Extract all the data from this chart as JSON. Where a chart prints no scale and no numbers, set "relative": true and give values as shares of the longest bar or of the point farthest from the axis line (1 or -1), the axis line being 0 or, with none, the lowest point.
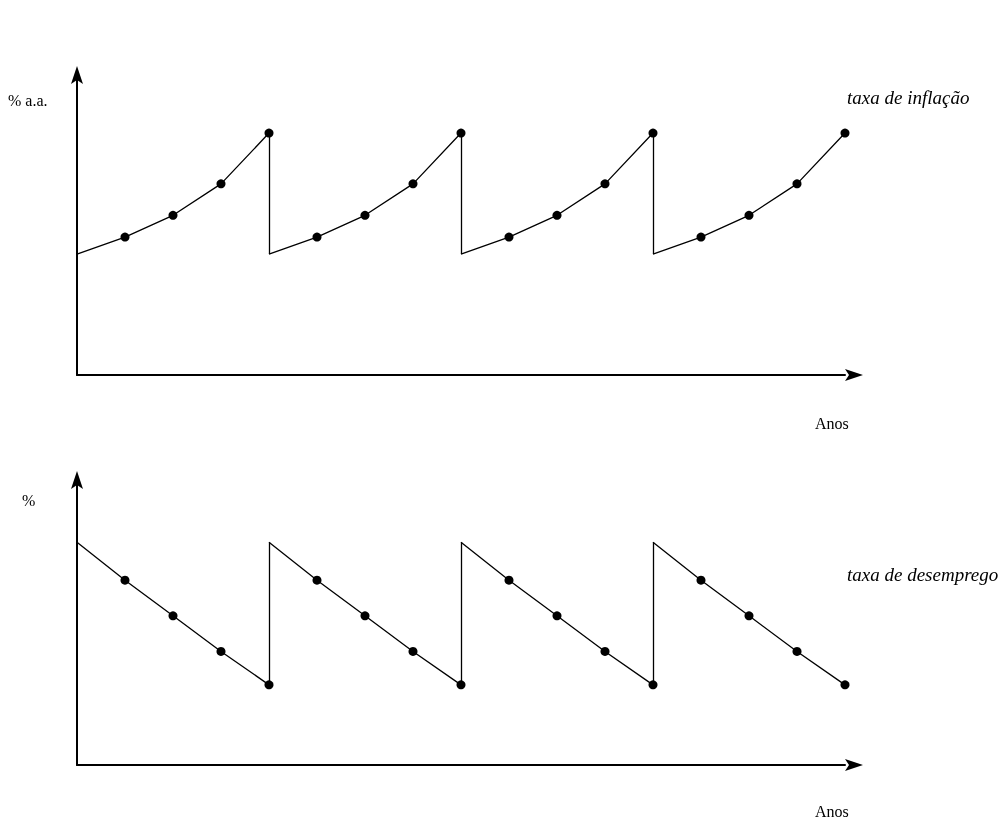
{
  "chart_data": [
    {
      "type": "line",
      "ylabel": "% a.a.",
      "xlabel": "Anos",
      "relative": true,
      "grid": false,
      "legend": false,
      "marker": "circle",
      "categories": [
        null,
        null,
        null,
        null,
        null,
        null,
        null,
        null,
        null,
        null,
        null,
        null,
        null,
        null,
        null,
        null,
        null
      ],
      "series": [
        {
          "color": "#000000",
          "values": [
            0.5,
            0.57,
            0.66,
            0.79,
            1,
            null,
            null,
            null,
            null,
            null,
            null,
            null,
            null,
            null,
            null,
            null,
            null
          ]
        },
        {
          "color": "#000000",
          "values": [
            null,
            null,
            null,
            null,
            0.5,
            0.57,
            0.66,
            0.79,
            1,
            null,
            null,
            null,
            null,
            null,
            null,
            null,
            null
          ]
        },
        {
          "color": "#000000",
          "values": [
            null,
            null,
            null,
            null,
            null,
            null,
            null,
            null,
            0.5,
            0.57,
            0.66,
            0.79,
            1,
            null,
            null,
            null,
            null
          ]
        },
        {
          "name": "taxa de inflação",
          "color": "#000000",
          "values": [
            null,
            null,
            null,
            null,
            null,
            null,
            null,
            null,
            null,
            null,
            null,
            null,
            0.5,
            0.57,
            0.66,
            0.79,
            1
          ]
        }
      ]
    },
    {
      "type": "line",
      "ylabel": "%",
      "xlabel": "Anos",
      "relative": true,
      "grid": false,
      "legend": false,
      "marker": "circle",
      "categories": [
        null,
        null,
        null,
        null,
        null,
        null,
        null,
        null,
        null,
        null,
        null,
        null,
        null,
        null,
        null,
        null,
        null
      ],
      "series": [
        {
          "color": "#000000",
          "values": [
            1,
            0.83,
            0.67,
            0.51,
            0.36,
            null,
            null,
            null,
            null,
            null,
            null,
            null,
            null,
            null,
            null,
            null,
            null
          ]
        },
        {
          "color": "#000000",
          "values": [
            null,
            null,
            null,
            null,
            1,
            0.83,
            0.67,
            0.51,
            0.36,
            null,
            null,
            null,
            null,
            null,
            null,
            null,
            null
          ]
        },
        {
          "color": "#000000",
          "values": [
            null,
            null,
            null,
            null,
            null,
            null,
            null,
            null,
            1,
            0.83,
            0.67,
            0.51,
            0.36,
            null,
            null,
            null,
            null
          ]
        },
        {
          "name": "taxa de desemprego",
          "color": "#000000",
          "values": [
            null,
            null,
            null,
            null,
            null,
            null,
            null,
            null,
            null,
            null,
            null,
            null,
            1,
            0.83,
            0.67,
            0.51,
            0.36
          ]
        }
      ]
    }
  ]
}
